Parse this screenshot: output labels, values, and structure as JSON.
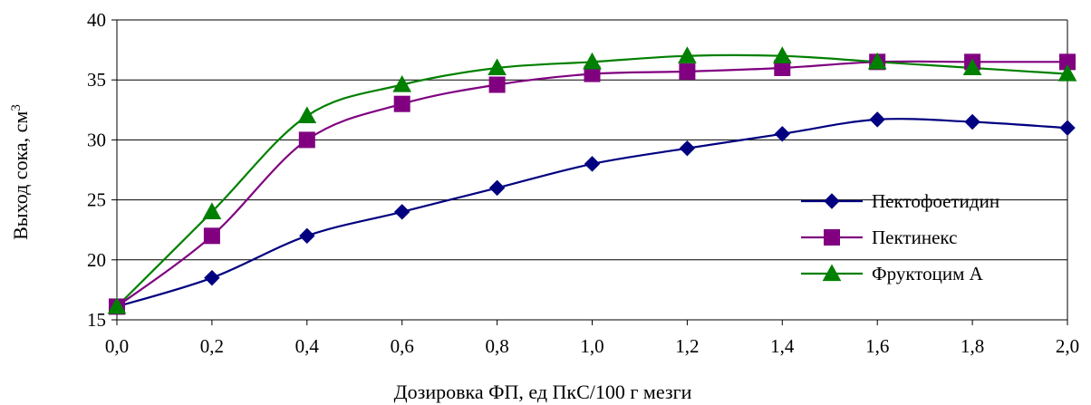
{
  "chart_data": {
    "type": "line",
    "title": "",
    "xlabel": "Дозировка ФП, ед ПкС/100 г мезги",
    "ylabel": "Выход сока, см",
    "ylabel_sup": "3",
    "x": [
      0.0,
      0.2,
      0.4,
      0.6,
      0.8,
      1.0,
      1.2,
      1.4,
      1.6,
      1.8,
      2.0
    ],
    "x_tick_labels": [
      "0,0",
      "0,2",
      "0,4",
      "0,6",
      "0,8",
      "1,0",
      "1,2",
      "1,4",
      "1,6",
      "1,8",
      "2,0"
    ],
    "xlim": [
      0,
      2
    ],
    "ylim": [
      15,
      40
    ],
    "y_ticks": [
      15,
      20,
      25,
      30,
      35,
      40
    ],
    "y_tick_labels": [
      "15",
      "20",
      "25",
      "30",
      "35",
      "40"
    ],
    "grid": "horizontal",
    "legend_position": "bottom-right",
    "series": [
      {
        "name": "Пектофоетидин",
        "color": "#000080",
        "marker": "diamond",
        "values": [
          16.1,
          18.5,
          22.0,
          24.0,
          26.0,
          28.0,
          29.3,
          30.5,
          31.7,
          31.5,
          31.0
        ]
      },
      {
        "name": "Пектинекс",
        "color": "#800080",
        "marker": "square",
        "values": [
          16.1,
          22.0,
          30.0,
          33.0,
          34.6,
          35.5,
          35.7,
          36.0,
          36.5,
          36.5,
          36.5
        ]
      },
      {
        "name": "Фруктоцим А",
        "color": "#008000",
        "marker": "triangle",
        "values": [
          16.1,
          24.0,
          32.0,
          34.6,
          36.0,
          36.5,
          37.0,
          37.0,
          36.5,
          36.0,
          35.5
        ]
      }
    ]
  }
}
